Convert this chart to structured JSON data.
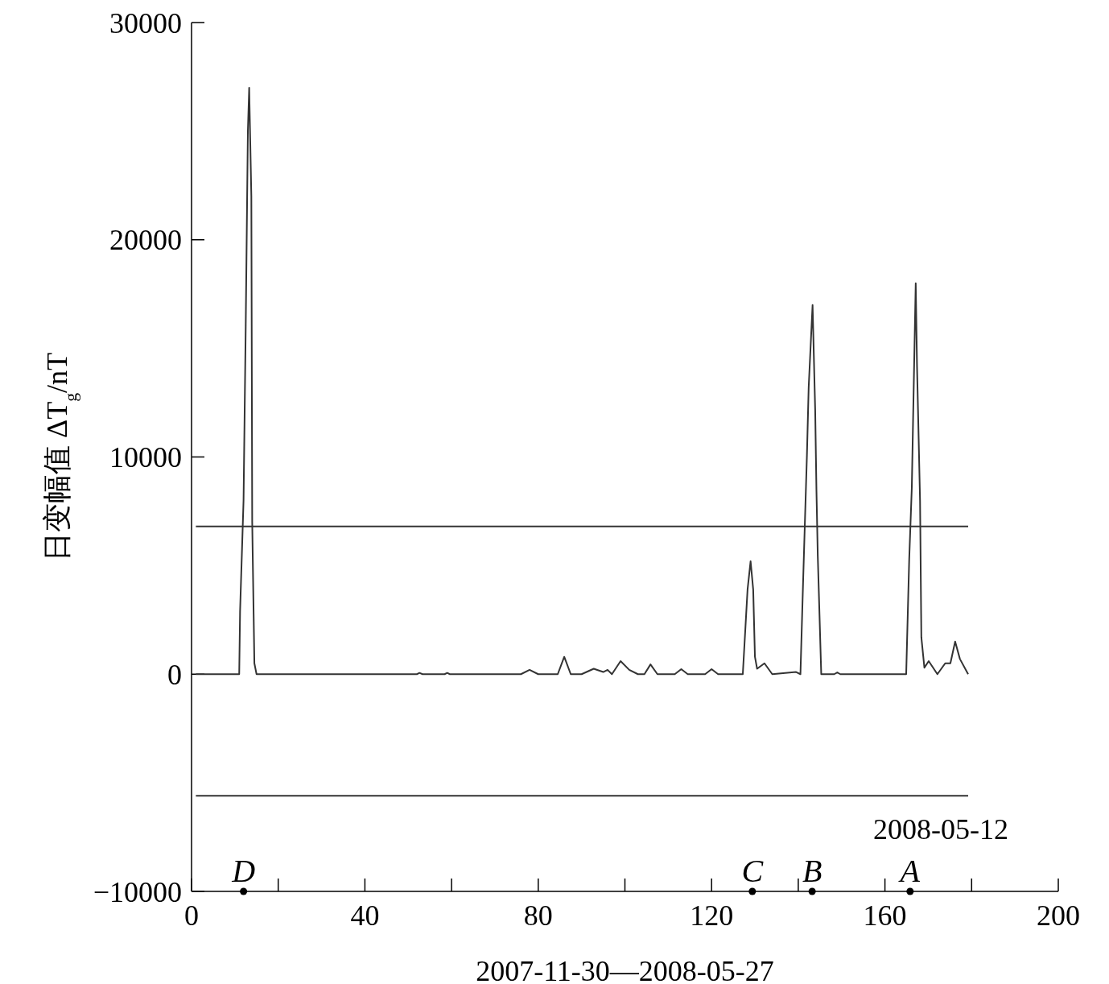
{
  "chart_data": {
    "type": "line",
    "xlabel": "2007-11-30—2008-05-27",
    "ylabel": "日变幅值 ΔT$_{g}$/nT",
    "xlim": [
      0,
      200
    ],
    "ylim": [
      -10000,
      30000
    ],
    "xticks": [
      0,
      {
        "value": 20,
        "label": null
      },
      40,
      {
        "value": 60,
        "label": null
      },
      80,
      {
        "value": 100,
        "label": null
      },
      120,
      {
        "value": 140,
        "label": null
      },
      160,
      {
        "value": 180,
        "label": null
      },
      200
    ],
    "yticks": [
      {
        "value": -10000,
        "label": "−10000"
      },
      0,
      10000,
      20000,
      30000
    ],
    "grid": false,
    "line_style": "solid",
    "series": [
      {
        "color": "#333333",
        "x": [
          1,
          11,
          11.2,
          12,
          12.5,
          13,
          13.3,
          13.8,
          14,
          14.5,
          15,
          52,
          52.6,
          53.3,
          58.4,
          59,
          59.6,
          76,
          78,
          80,
          84.5,
          86,
          87.5,
          90,
          92.8,
          95,
          96,
          97,
          99,
          101,
          103,
          104.5,
          105.9,
          107.5,
          111.5,
          113,
          114.5,
          118.5,
          120,
          121.5,
          124,
          127.2,
          128.3,
          129,
          129.6,
          130,
          130.5,
          132.2,
          134,
          139.5,
          140.5,
          141.1,
          142,
          142.4,
          143.3,
          143.9,
          144.2,
          144.5,
          145.3,
          148.3,
          149,
          149.7,
          164.9,
          165.6,
          166.2,
          166.5,
          167.1,
          167.4,
          168.1,
          168.4,
          169.1,
          170.1,
          172.1,
          173.9,
          175.1,
          176.2,
          177.3,
          179.2
        ],
        "values": [
          0,
          0,
          2900,
          8000,
          16000,
          25000,
          27000,
          22000,
          7000,
          500,
          0,
          0,
          60,
          0,
          0,
          60,
          0,
          0,
          200,
          0,
          0,
          800,
          0,
          0,
          250,
          100,
          200,
          0,
          600,
          200,
          0,
          0,
          450,
          0,
          0,
          230,
          0,
          0,
          230,
          0,
          0,
          0,
          3900,
          5200,
          3900,
          800,
          250,
          500,
          0,
          100,
          0,
          4150,
          10100,
          13200,
          17000,
          12200,
          8400,
          5450,
          0,
          0,
          80,
          0,
          0,
          5300,
          8600,
          11800,
          18000,
          14200,
          8000,
          1700,
          300,
          600,
          0,
          500,
          500,
          1500,
          700,
          0
        ]
      }
    ],
    "ref_lines": [
      {
        "axis": "y",
        "value": 6800,
        "color": "#333333"
      },
      {
        "axis": "y",
        "value": -5600,
        "color": "#333333"
      }
    ],
    "annotations": [
      {
        "text": "D",
        "x": 12,
        "y": -10000
      },
      {
        "text": "C",
        "x": 129.4,
        "y": -10000
      },
      {
        "text": "B",
        "x": 143.2,
        "y": -10000
      },
      {
        "text": "A",
        "x": 165.8,
        "y": -10000
      },
      "2008-05-12"
    ]
  }
}
